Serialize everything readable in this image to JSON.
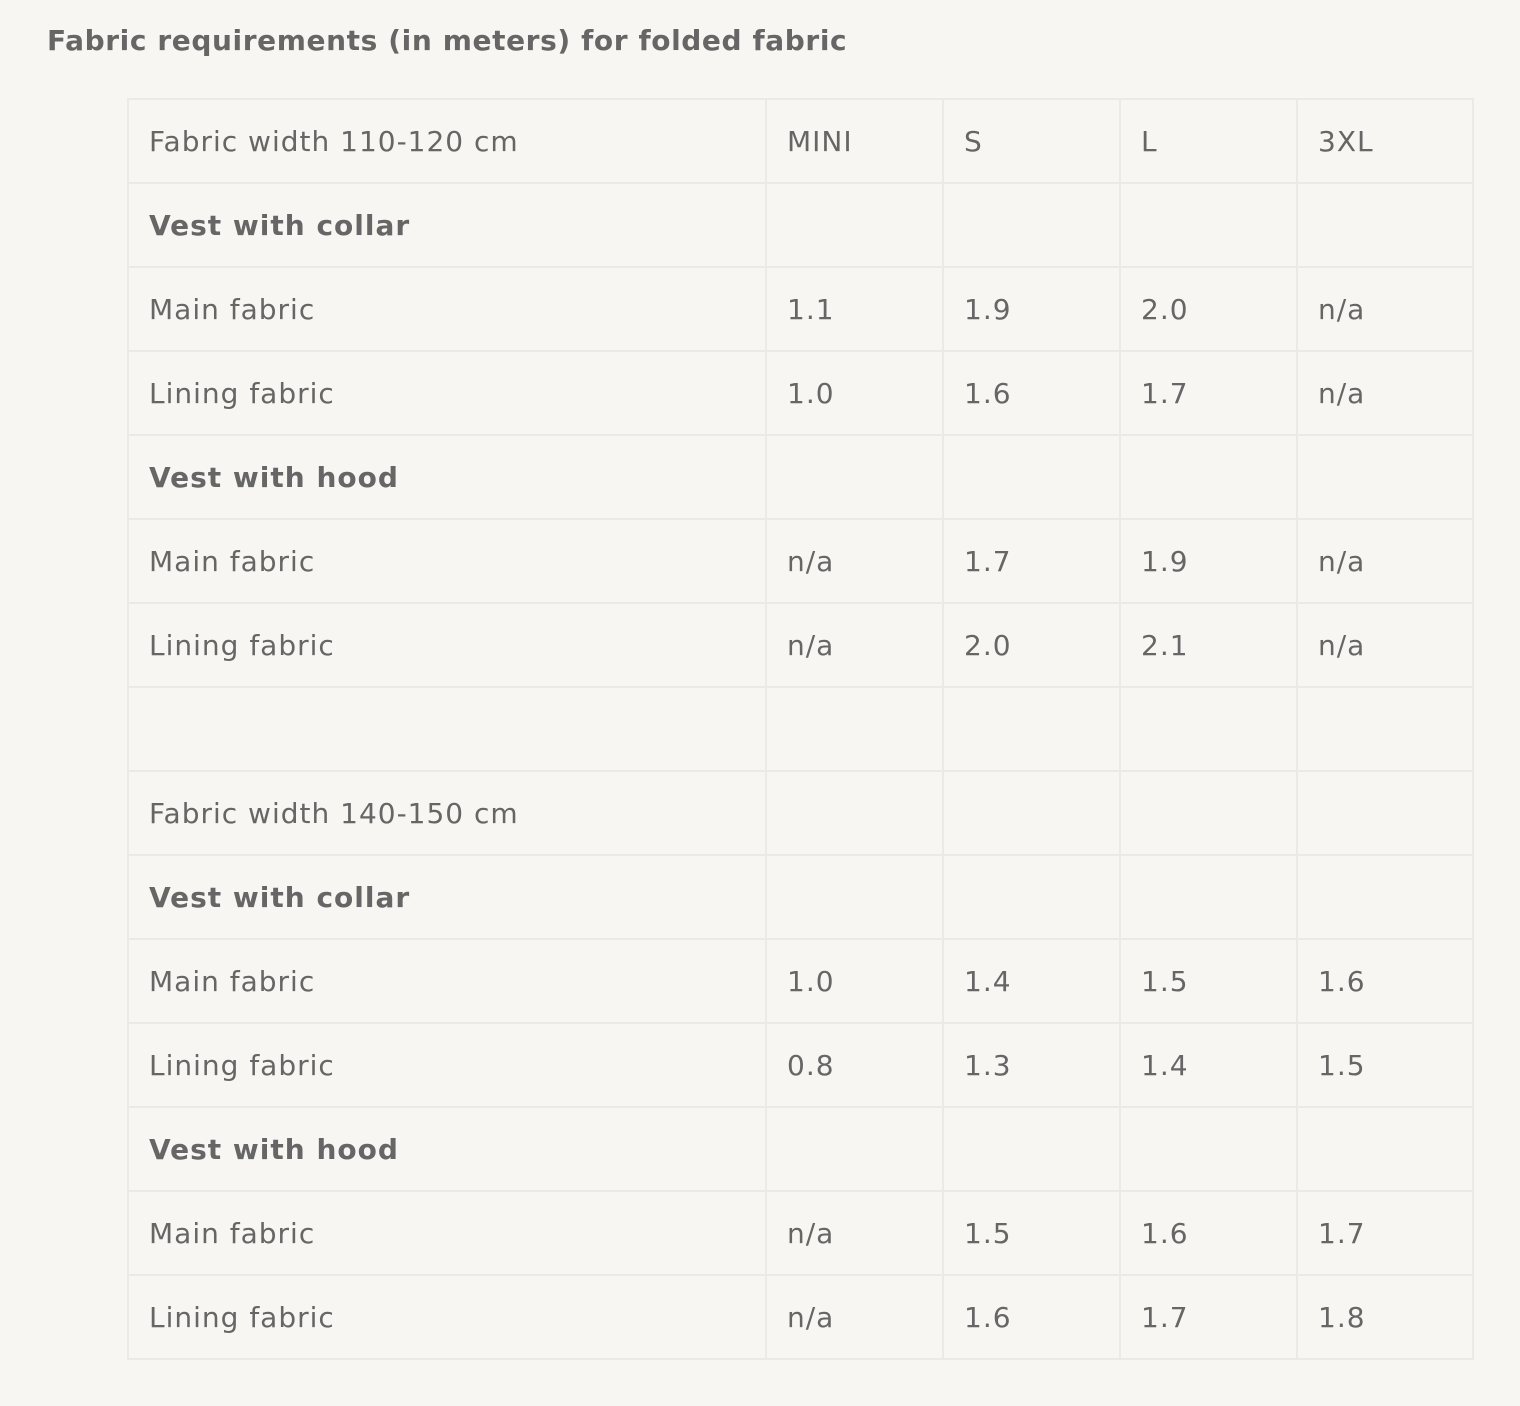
{
  "title": "Fabric requirements (in meters) for folded fabric",
  "table": {
    "rows": [
      {
        "type": "header",
        "cells": [
          "Fabric width 110-120 cm",
          "MINI",
          "S",
          "L",
          "3XL"
        ]
      },
      {
        "type": "section",
        "cells": [
          "Vest with collar",
          "",
          "",
          "",
          ""
        ]
      },
      {
        "type": "data",
        "cells": [
          "Main fabric",
          "1.1",
          "1.9",
          "2.0",
          "n/a"
        ]
      },
      {
        "type": "data",
        "cells": [
          "Lining fabric",
          "1.0",
          "1.6",
          "1.7",
          "n/a"
        ]
      },
      {
        "type": "section",
        "cells": [
          "Vest with hood",
          "",
          "",
          "",
          ""
        ]
      },
      {
        "type": "data",
        "cells": [
          "Main fabric",
          "n/a",
          "1.7",
          "1.9",
          "n/a"
        ]
      },
      {
        "type": "data",
        "cells": [
          "Lining fabric",
          "n/a",
          "2.0",
          "2.1",
          "n/a"
        ]
      },
      {
        "type": "blank",
        "cells": [
          "",
          "",
          "",
          "",
          ""
        ]
      },
      {
        "type": "header",
        "cells": [
          "Fabric width 140-150 cm",
          "",
          "",
          "",
          ""
        ]
      },
      {
        "type": "section",
        "cells": [
          "Vest with collar",
          "",
          "",
          "",
          ""
        ]
      },
      {
        "type": "data",
        "cells": [
          "Main fabric",
          "1.0",
          "1.4",
          "1.5",
          "1.6"
        ]
      },
      {
        "type": "data",
        "cells": [
          "Lining fabric",
          "0.8",
          "1.3",
          "1.4",
          "1.5"
        ]
      },
      {
        "type": "section",
        "cells": [
          "Vest with hood",
          "",
          "",
          "",
          ""
        ]
      },
      {
        "type": "data",
        "cells": [
          "Main fabric",
          "n/a",
          "1.5",
          "1.6",
          "1.7"
        ]
      },
      {
        "type": "data",
        "cells": [
          "Lining fabric",
          "n/a",
          "1.6",
          "1.7",
          "1.8"
        ]
      }
    ]
  }
}
